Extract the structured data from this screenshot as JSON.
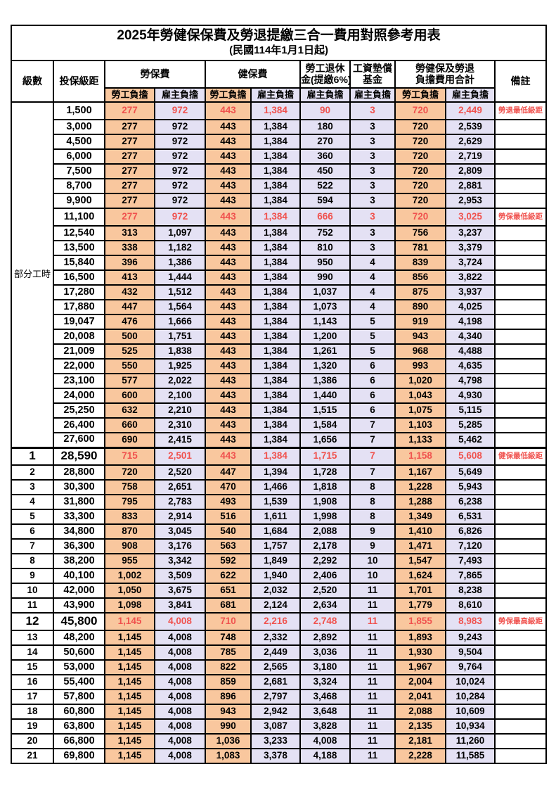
{
  "title": "2025年勞健保保費及勞退提繳三合一費用對照參考用表",
  "subtitle": "(民國114年1月1日起)",
  "columns": {
    "level": "級數",
    "salary": "投保級距",
    "labor_group": "勞保費",
    "health_group": "健保費",
    "pension_line1": "勞工退休",
    "pension_line2": "金(提繳6%)",
    "wage_fund_line1": "工資墊償",
    "wage_fund_line2": "基金",
    "total_line1": "勞健保及勞退",
    "total_line2": "負擔費用合計",
    "remark": "備註",
    "employee": "勞工負擔",
    "employer": "雇主負擔"
  },
  "part_time_label": "部分工時",
  "colors": {
    "employee_bg": "#F9C79E",
    "employer_bg": "#E4E1F4",
    "highlight_text": "#F0524E",
    "border": "#000000"
  },
  "row_fields": [
    "level",
    "salary",
    "labor_employee",
    "labor_employer",
    "health_employee",
    "health_employer",
    "pension_employer",
    "wage_fund_employer",
    "total_employee",
    "total_employer",
    "remark",
    "style"
  ],
  "rows": [
    [
      "",
      "1,500",
      "277",
      "972",
      "443",
      "1,384",
      "90",
      "3",
      "720",
      "2,449",
      "勞退最低級距",
      "hi"
    ],
    [
      "",
      "3,000",
      "277",
      "972",
      "443",
      "1,384",
      "180",
      "3",
      "720",
      "2,539",
      "",
      ""
    ],
    [
      "",
      "4,500",
      "277",
      "972",
      "443",
      "1,384",
      "270",
      "3",
      "720",
      "2,629",
      "",
      ""
    ],
    [
      "",
      "6,000",
      "277",
      "972",
      "443",
      "1,384",
      "360",
      "3",
      "720",
      "2,719",
      "",
      ""
    ],
    [
      "",
      "7,500",
      "277",
      "972",
      "443",
      "1,384",
      "450",
      "3",
      "720",
      "2,809",
      "",
      ""
    ],
    [
      "",
      "8,700",
      "277",
      "972",
      "443",
      "1,384",
      "522",
      "3",
      "720",
      "2,881",
      "",
      ""
    ],
    [
      "",
      "9,900",
      "277",
      "972",
      "443",
      "1,384",
      "594",
      "3",
      "720",
      "2,953",
      "",
      ""
    ],
    [
      "",
      "11,100",
      "277",
      "972",
      "443",
      "1,384",
      "666",
      "3",
      "720",
      "3,025",
      "勞保最低級距",
      "hi"
    ],
    [
      "",
      "12,540",
      "313",
      "1,097",
      "443",
      "1,384",
      "752",
      "3",
      "756",
      "3,237",
      "",
      ""
    ],
    [
      "",
      "13,500",
      "338",
      "1,182",
      "443",
      "1,384",
      "810",
      "3",
      "781",
      "3,379",
      "",
      ""
    ],
    [
      "",
      "15,840",
      "396",
      "1,386",
      "443",
      "1,384",
      "950",
      "4",
      "839",
      "3,724",
      "",
      ""
    ],
    [
      "",
      "16,500",
      "413",
      "1,444",
      "443",
      "1,384",
      "990",
      "4",
      "856",
      "3,822",
      "",
      ""
    ],
    [
      "",
      "17,280",
      "432",
      "1,512",
      "443",
      "1,384",
      "1,037",
      "4",
      "875",
      "3,937",
      "",
      ""
    ],
    [
      "",
      "17,880",
      "447",
      "1,564",
      "443",
      "1,384",
      "1,073",
      "4",
      "890",
      "4,025",
      "",
      ""
    ],
    [
      "",
      "19,047",
      "476",
      "1,666",
      "443",
      "1,384",
      "1,143",
      "5",
      "919",
      "4,198",
      "",
      ""
    ],
    [
      "",
      "20,008",
      "500",
      "1,751",
      "443",
      "1,384",
      "1,200",
      "5",
      "943",
      "4,340",
      "",
      ""
    ],
    [
      "",
      "21,009",
      "525",
      "1,838",
      "443",
      "1,384",
      "1,261",
      "5",
      "968",
      "4,488",
      "",
      ""
    ],
    [
      "",
      "22,000",
      "550",
      "1,925",
      "443",
      "1,384",
      "1,320",
      "6",
      "993",
      "4,635",
      "",
      ""
    ],
    [
      "",
      "23,100",
      "577",
      "2,022",
      "443",
      "1,384",
      "1,386",
      "6",
      "1,020",
      "4,798",
      "",
      ""
    ],
    [
      "",
      "24,000",
      "600",
      "2,100",
      "443",
      "1,384",
      "1,440",
      "6",
      "1,043",
      "4,930",
      "",
      ""
    ],
    [
      "",
      "25,250",
      "632",
      "2,210",
      "443",
      "1,384",
      "1,515",
      "6",
      "1,075",
      "5,115",
      "",
      ""
    ],
    [
      "",
      "26,400",
      "660",
      "2,310",
      "443",
      "1,384",
      "1,584",
      "7",
      "1,103",
      "5,285",
      "",
      ""
    ],
    [
      "",
      "27,600",
      "690",
      "2,415",
      "443",
      "1,384",
      "1,656",
      "7",
      "1,133",
      "5,462",
      "",
      ""
    ],
    [
      "1",
      "28,590",
      "715",
      "2,501",
      "443",
      "1,384",
      "1,715",
      "7",
      "1,158",
      "5,608",
      "健保最低級距",
      "hi big section"
    ],
    [
      "2",
      "28,800",
      "720",
      "2,520",
      "447",
      "1,394",
      "1,728",
      "7",
      "1,167",
      "5,649",
      "",
      ""
    ],
    [
      "3",
      "30,300",
      "758",
      "2,651",
      "470",
      "1,466",
      "1,818",
      "8",
      "1,228",
      "5,943",
      "",
      ""
    ],
    [
      "4",
      "31,800",
      "795",
      "2,783",
      "493",
      "1,539",
      "1,908",
      "8",
      "1,288",
      "6,238",
      "",
      ""
    ],
    [
      "5",
      "33,300",
      "833",
      "2,914",
      "516",
      "1,611",
      "1,998",
      "8",
      "1,349",
      "6,531",
      "",
      ""
    ],
    [
      "6",
      "34,800",
      "870",
      "3,045",
      "540",
      "1,684",
      "2,088",
      "9",
      "1,410",
      "6,826",
      "",
      ""
    ],
    [
      "7",
      "36,300",
      "908",
      "3,176",
      "563",
      "1,757",
      "2,178",
      "9",
      "1,471",
      "7,120",
      "",
      ""
    ],
    [
      "8",
      "38,200",
      "955",
      "3,342",
      "592",
      "1,849",
      "2,292",
      "10",
      "1,547",
      "7,493",
      "",
      ""
    ],
    [
      "9",
      "40,100",
      "1,002",
      "3,509",
      "622",
      "1,940",
      "2,406",
      "10",
      "1,624",
      "7,865",
      "",
      ""
    ],
    [
      "10",
      "42,000",
      "1,050",
      "3,675",
      "651",
      "2,032",
      "2,520",
      "11",
      "1,701",
      "8,238",
      "",
      ""
    ],
    [
      "11",
      "43,900",
      "1,098",
      "3,841",
      "681",
      "2,124",
      "2,634",
      "11",
      "1,779",
      "8,610",
      "",
      ""
    ],
    [
      "12",
      "45,800",
      "1,145",
      "4,008",
      "710",
      "2,216",
      "2,748",
      "11",
      "1,855",
      "8,983",
      "勞保最高級距",
      "hi big"
    ],
    [
      "13",
      "48,200",
      "1,145",
      "4,008",
      "748",
      "2,332",
      "2,892",
      "11",
      "1,893",
      "9,243",
      "",
      ""
    ],
    [
      "14",
      "50,600",
      "1,145",
      "4,008",
      "785",
      "2,449",
      "3,036",
      "11",
      "1,930",
      "9,504",
      "",
      ""
    ],
    [
      "15",
      "53,000",
      "1,145",
      "4,008",
      "822",
      "2,565",
      "3,180",
      "11",
      "1,967",
      "9,764",
      "",
      ""
    ],
    [
      "16",
      "55,400",
      "1,145",
      "4,008",
      "859",
      "2,681",
      "3,324",
      "11",
      "2,004",
      "10,024",
      "",
      ""
    ],
    [
      "17",
      "57,800",
      "1,145",
      "4,008",
      "896",
      "2,797",
      "3,468",
      "11",
      "2,041",
      "10,284",
      "",
      ""
    ],
    [
      "18",
      "60,800",
      "1,145",
      "4,008",
      "943",
      "2,942",
      "3,648",
      "11",
      "2,088",
      "10,609",
      "",
      ""
    ],
    [
      "19",
      "63,800",
      "1,145",
      "4,008",
      "990",
      "3,087",
      "3,828",
      "11",
      "2,135",
      "10,934",
      "",
      ""
    ],
    [
      "20",
      "66,800",
      "1,145",
      "4,008",
      "1,036",
      "3,233",
      "4,008",
      "11",
      "2,181",
      "11,260",
      "",
      ""
    ],
    [
      "21",
      "69,800",
      "1,145",
      "4,008",
      "1,083",
      "3,378",
      "4,188",
      "11",
      "2,228",
      "11,585",
      "",
      ""
    ]
  ]
}
